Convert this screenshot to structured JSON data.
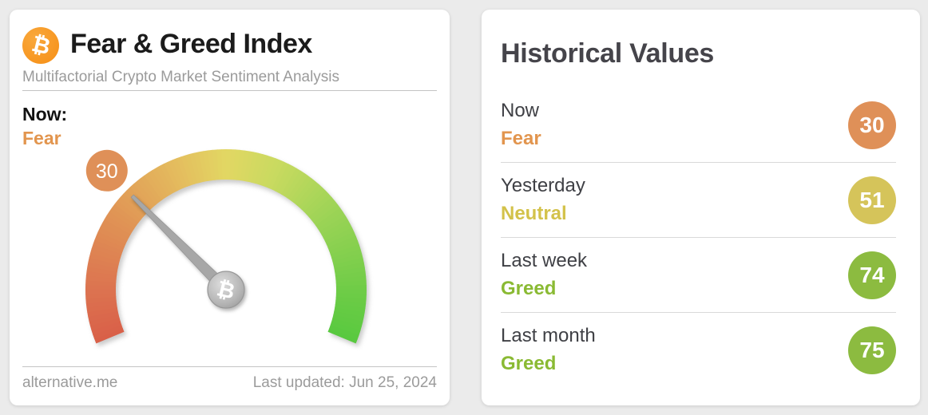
{
  "chart_data": {
    "type": "gauge",
    "title": "Fear & Greed Index",
    "subtitle": "Multifactorial Crypto Market Sentiment Analysis",
    "value": 30,
    "value_classification": "Fear",
    "range": [
      0,
      100
    ],
    "updated": "Jun 25, 2024",
    "historical": [
      {
        "period": "Now",
        "classification": "Fear",
        "value": 30
      },
      {
        "period": "Yesterday",
        "classification": "Neutral",
        "value": 51
      },
      {
        "period": "Last week",
        "classification": "Greed",
        "value": 74
      },
      {
        "period": "Last month",
        "classification": "Greed",
        "value": 75
      }
    ]
  },
  "left_card": {
    "logo_glyph": "₿",
    "logo_color": "#f7941d",
    "title": "Fear & Greed Index",
    "subtitle": "Multifactorial Crypto Market Sentiment Analysis",
    "now_label": "Now:",
    "now_sentiment": "Fear",
    "now_color": "#e2954e",
    "footer_site": "alternative.me",
    "footer_updated": "Last updated: Jun 25, 2024"
  },
  "gauge": {
    "value": 30,
    "min": 0,
    "max": 100,
    "start_angle_deg": 202.5,
    "sweep_deg": 225,
    "badge_label": "30",
    "badge_color": "#df9058",
    "needle_color": "#a7a7a7",
    "hub_glyph": "₿",
    "color_stops": [
      {
        "t": 0.0,
        "color": "#d95f48"
      },
      {
        "t": 0.1,
        "color": "#dc7350"
      },
      {
        "t": 0.25,
        "color": "#e09455"
      },
      {
        "t": 0.4,
        "color": "#e4bc5e"
      },
      {
        "t": 0.5,
        "color": "#e2d763"
      },
      {
        "t": 0.6,
        "color": "#c9da60"
      },
      {
        "t": 0.75,
        "color": "#99d355"
      },
      {
        "t": 0.9,
        "color": "#6fcc47"
      },
      {
        "t": 1.0,
        "color": "#58c93f"
      }
    ]
  },
  "right_card": {
    "title": "Historical Values",
    "rows": [
      {
        "label": "Now",
        "sentiment": "Fear",
        "value": "30",
        "sentiment_color": "#e2954e",
        "circle_color": "#df9058"
      },
      {
        "label": "Yesterday",
        "sentiment": "Neutral",
        "value": "51",
        "sentiment_color": "#d3c24a",
        "circle_color": "#d5c45a"
      },
      {
        "label": "Last week",
        "sentiment": "Greed",
        "value": "74",
        "sentiment_color": "#8aba33",
        "circle_color": "#8cbb40"
      },
      {
        "label": "Last month",
        "sentiment": "Greed",
        "value": "75",
        "sentiment_color": "#8aba33",
        "circle_color": "#8cbb40"
      }
    ]
  }
}
